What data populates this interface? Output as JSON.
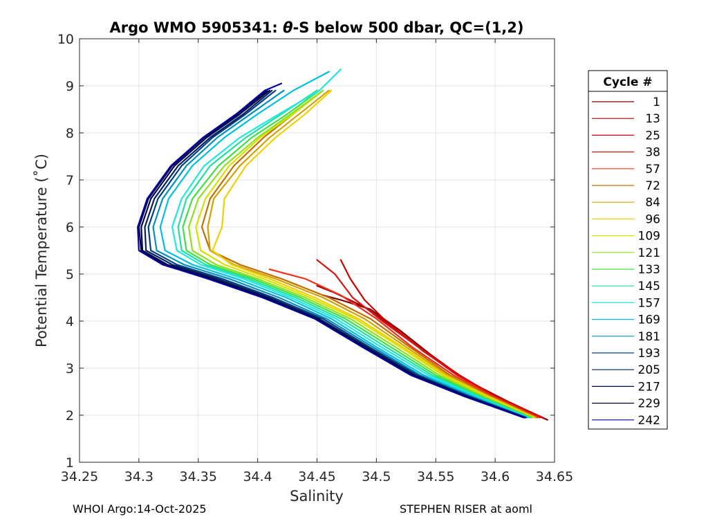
{
  "chart_data": {
    "type": "line",
    "title_pre": "Argo WMO 5905341: ",
    "title_theta": "θ",
    "title_post": "-S below 500 dbar,  QC=(1,2)",
    "xlabel": "Salinity",
    "ylabel": "Potential Temperature (˚C)",
    "xlim": [
      34.25,
      34.65
    ],
    "ylim": [
      1,
      10
    ],
    "xticks": [
      34.25,
      34.3,
      34.35,
      34.4,
      34.45,
      34.5,
      34.55,
      34.6,
      34.65
    ],
    "xtick_labels": [
      "34.25",
      "34.3",
      "34.35",
      "34.4",
      "34.45",
      "34.5",
      "34.55",
      "34.6",
      "34.65"
    ],
    "yticks": [
      1,
      2,
      3,
      4,
      5,
      6,
      7,
      8,
      9,
      10
    ],
    "ytick_labels": [
      "1",
      "2",
      "3",
      "4",
      "5",
      "6",
      "7",
      "8",
      "9",
      "10"
    ],
    "grid": true,
    "legend_title": "Cycle #",
    "legend_position": "right",
    "legend": [
      {
        "label": "1",
        "color": "#800000"
      },
      {
        "label": "13",
        "color": "#a00000"
      },
      {
        "label": "25",
        "color": "#cc0000"
      },
      {
        "label": "38",
        "color": "#e01010"
      },
      {
        "label": "57",
        "color": "#f03020"
      },
      {
        "label": "72",
        "color": "#c07000"
      },
      {
        "label": "84",
        "color": "#d4a000"
      },
      {
        "label": "96",
        "color": "#f0d000"
      },
      {
        "label": "109",
        "color": "#d8e000"
      },
      {
        "label": "121",
        "color": "#90e020"
      },
      {
        "label": "133",
        "color": "#40e040"
      },
      {
        "label": "145",
        "color": "#20e0a0"
      },
      {
        "label": "157",
        "color": "#20e8e0"
      },
      {
        "label": "169",
        "color": "#00c0e0"
      },
      {
        "label": "181",
        "color": "#0090c0"
      },
      {
        "label": "193",
        "color": "#004080"
      },
      {
        "label": "205",
        "color": "#002060"
      },
      {
        "label": "217",
        "color": "#000050"
      },
      {
        "label": "229",
        "color": "#000040"
      },
      {
        "label": "242",
        "color": "#0000a0"
      }
    ],
    "series": [
      {
        "name": "1",
        "color": "#800000",
        "x": [
          34.644,
          34.61,
          34.575,
          34.545,
          34.52,
          34.495,
          34.47,
          34.455
        ],
        "y": [
          1.9,
          2.3,
          2.75,
          3.3,
          3.8,
          4.25,
          4.45,
          4.55
        ]
      },
      {
        "name": "13",
        "color": "#a00000",
        "x": [
          34.642,
          34.605,
          34.572,
          34.54,
          34.515,
          34.49,
          34.465,
          34.45
        ],
        "y": [
          1.92,
          2.35,
          2.8,
          3.35,
          3.85,
          4.3,
          4.6,
          4.75
        ]
      },
      {
        "name": "25",
        "color": "#cc0000",
        "x": [
          34.64,
          34.6,
          34.57,
          34.538,
          34.51,
          34.49,
          34.478,
          34.47
        ],
        "y": [
          1.95,
          2.4,
          2.85,
          3.4,
          3.95,
          4.45,
          4.9,
          5.3
        ]
      },
      {
        "name": "38",
        "color": "#e01010",
        "x": [
          34.638,
          34.6,
          34.568,
          34.535,
          34.505,
          34.48,
          34.465,
          34.45
        ],
        "y": [
          1.95,
          2.4,
          2.85,
          3.45,
          4.0,
          4.5,
          5.0,
          5.3
        ]
      },
      {
        "name": "57",
        "color": "#f03020",
        "x": [
          34.636,
          34.598,
          34.565,
          34.53,
          34.5,
          34.47,
          34.44,
          34.41
        ],
        "y": [
          1.95,
          2.4,
          2.85,
          3.45,
          4.05,
          4.55,
          4.9,
          5.1
        ]
      },
      {
        "name": "72",
        "color": "#c07000",
        "x": [
          34.635,
          34.596,
          34.562,
          34.528,
          34.495,
          34.46,
          34.42,
          34.385,
          34.36,
          34.353,
          34.36,
          34.38,
          34.405,
          34.43,
          34.455
        ],
        "y": [
          1.95,
          2.4,
          2.85,
          3.45,
          4.05,
          4.5,
          4.9,
          5.2,
          5.5,
          6.0,
          6.6,
          7.3,
          7.9,
          8.4,
          8.9
        ]
      },
      {
        "name": "84",
        "color": "#d4a000",
        "x": [
          34.634,
          34.595,
          34.56,
          34.525,
          34.49,
          34.455,
          34.415,
          34.38,
          34.36,
          34.358,
          34.363,
          34.385,
          34.41,
          34.435,
          34.46
        ],
        "y": [
          1.95,
          2.4,
          2.85,
          3.45,
          4.05,
          4.5,
          4.9,
          5.2,
          5.5,
          6.0,
          6.6,
          7.3,
          7.9,
          8.4,
          8.9
        ]
      },
      {
        "name": "96",
        "color": "#f0d000",
        "x": [
          34.633,
          34.594,
          34.558,
          34.522,
          34.485,
          34.448,
          34.41,
          34.378,
          34.362,
          34.37,
          34.372,
          34.39,
          34.415,
          34.44,
          34.462
        ],
        "y": [
          1.95,
          2.4,
          2.85,
          3.45,
          4.05,
          4.5,
          4.9,
          5.2,
          5.5,
          6.0,
          6.6,
          7.3,
          7.9,
          8.4,
          8.9
        ]
      },
      {
        "name": "109",
        "color": "#d8e000",
        "x": [
          34.632,
          34.592,
          34.556,
          34.52,
          34.482,
          34.444,
          34.405,
          34.372,
          34.352,
          34.348,
          34.356,
          34.376,
          34.402,
          34.43,
          34.455
        ],
        "y": [
          1.95,
          2.4,
          2.85,
          3.45,
          4.05,
          4.5,
          4.9,
          5.2,
          5.5,
          6.0,
          6.6,
          7.3,
          7.9,
          8.4,
          8.9
        ]
      },
      {
        "name": "121",
        "color": "#90e020",
        "x": [
          34.631,
          34.59,
          34.553,
          34.516,
          34.478,
          34.44,
          34.4,
          34.365,
          34.345,
          34.342,
          34.35,
          34.372,
          34.4,
          34.428,
          34.455
        ],
        "y": [
          1.95,
          2.4,
          2.85,
          3.45,
          4.05,
          4.5,
          4.9,
          5.2,
          5.5,
          6.0,
          6.6,
          7.3,
          7.9,
          8.4,
          8.9
        ]
      },
      {
        "name": "133",
        "color": "#40e040",
        "x": [
          34.63,
          34.588,
          34.55,
          34.512,
          34.474,
          34.436,
          34.396,
          34.36,
          34.34,
          34.337,
          34.345,
          34.367,
          34.395,
          34.425,
          34.452
        ],
        "y": [
          1.95,
          2.4,
          2.85,
          3.45,
          4.05,
          4.5,
          4.9,
          5.2,
          5.5,
          6.0,
          6.6,
          7.3,
          7.9,
          8.4,
          8.9
        ]
      },
      {
        "name": "145",
        "color": "#20e0a0",
        "x": [
          34.629,
          34.586,
          34.547,
          34.508,
          34.47,
          34.432,
          34.392,
          34.356,
          34.336,
          34.333,
          34.34,
          34.36,
          34.39,
          34.42,
          34.45
        ],
        "y": [
          1.95,
          2.4,
          2.85,
          3.45,
          4.05,
          4.5,
          4.9,
          5.2,
          5.5,
          6.0,
          6.6,
          7.3,
          7.9,
          8.4,
          8.9
        ]
      },
      {
        "name": "157",
        "color": "#20e8e0",
        "x": [
          34.628,
          34.584,
          34.544,
          34.504,
          34.466,
          34.428,
          34.388,
          34.352,
          34.332,
          34.328,
          34.336,
          34.355,
          34.385,
          34.418,
          34.452,
          34.47
        ],
        "y": [
          1.95,
          2.4,
          2.85,
          3.45,
          4.05,
          4.5,
          4.9,
          5.2,
          5.5,
          6.0,
          6.6,
          7.3,
          7.9,
          8.4,
          8.9,
          9.35
        ]
      },
      {
        "name": "169",
        "color": "#00c0e0",
        "x": [
          34.627,
          34.582,
          34.54,
          34.5,
          34.462,
          34.424,
          34.382,
          34.345,
          34.322,
          34.318,
          34.325,
          34.345,
          34.372,
          34.4,
          34.43,
          34.46
        ],
        "y": [
          1.95,
          2.4,
          2.85,
          3.45,
          4.05,
          4.5,
          4.9,
          5.2,
          5.5,
          6.0,
          6.6,
          7.3,
          7.9,
          8.4,
          8.9,
          9.3
        ]
      },
      {
        "name": "181",
        "color": "#0090c0",
        "x": [
          34.626,
          34.58,
          34.537,
          34.497,
          34.458,
          34.418,
          34.376,
          34.338,
          34.315,
          34.312,
          34.32,
          34.34,
          34.366,
          34.394,
          34.422
        ],
        "y": [
          1.95,
          2.4,
          2.85,
          3.45,
          4.05,
          4.5,
          4.9,
          5.2,
          5.5,
          6.0,
          6.6,
          7.3,
          7.9,
          8.4,
          8.9
        ]
      },
      {
        "name": "193",
        "color": "#004080",
        "x": [
          34.626,
          34.578,
          34.535,
          34.494,
          34.455,
          34.413,
          34.37,
          34.332,
          34.31,
          34.308,
          34.316,
          34.336,
          34.362,
          34.39,
          34.415
        ],
        "y": [
          1.95,
          2.4,
          2.85,
          3.45,
          4.05,
          4.5,
          4.9,
          5.2,
          5.5,
          6.0,
          6.6,
          7.3,
          7.9,
          8.4,
          8.9
        ]
      },
      {
        "name": "205",
        "color": "#002060",
        "x": [
          34.625,
          34.577,
          34.533,
          34.492,
          34.452,
          34.41,
          34.366,
          34.328,
          34.306,
          34.305,
          34.313,
          34.333,
          34.36,
          34.388,
          34.412
        ],
        "y": [
          1.95,
          2.4,
          2.85,
          3.45,
          4.05,
          4.5,
          4.9,
          5.2,
          5.5,
          6.0,
          6.6,
          7.3,
          7.9,
          8.4,
          8.9
        ]
      },
      {
        "name": "217",
        "color": "#000050",
        "x": [
          34.625,
          34.576,
          34.531,
          34.49,
          34.45,
          34.407,
          34.362,
          34.324,
          34.303,
          34.302,
          34.31,
          34.33,
          34.357,
          34.385,
          34.41
        ],
        "y": [
          1.95,
          2.4,
          2.85,
          3.45,
          4.05,
          4.5,
          4.9,
          5.2,
          5.5,
          6.0,
          6.6,
          7.3,
          7.9,
          8.4,
          8.9
        ]
      },
      {
        "name": "229",
        "color": "#000040",
        "x": [
          34.624,
          34.575,
          34.53,
          34.489,
          34.449,
          34.405,
          34.36,
          34.322,
          34.302,
          34.3,
          34.308,
          34.328,
          34.355,
          34.383,
          34.408
        ],
        "y": [
          1.95,
          2.4,
          2.85,
          3.45,
          4.05,
          4.5,
          4.9,
          5.2,
          5.5,
          6.0,
          6.6,
          7.3,
          7.9,
          8.4,
          8.9
        ]
      },
      {
        "name": "242",
        "color": "#0000a0",
        "x": [
          34.624,
          34.574,
          34.529,
          34.488,
          34.448,
          34.404,
          34.358,
          34.32,
          34.3,
          34.299,
          34.307,
          34.327,
          34.354,
          34.382,
          34.406,
          34.42
        ],
        "y": [
          1.95,
          2.4,
          2.85,
          3.45,
          4.05,
          4.5,
          4.9,
          5.2,
          5.5,
          6.0,
          6.6,
          7.3,
          7.9,
          8.4,
          8.9,
          9.05
        ]
      }
    ]
  },
  "footer": {
    "left": "WHOI Argo:14-Oct-2025",
    "right": "STEPHEN RISER at aoml"
  }
}
